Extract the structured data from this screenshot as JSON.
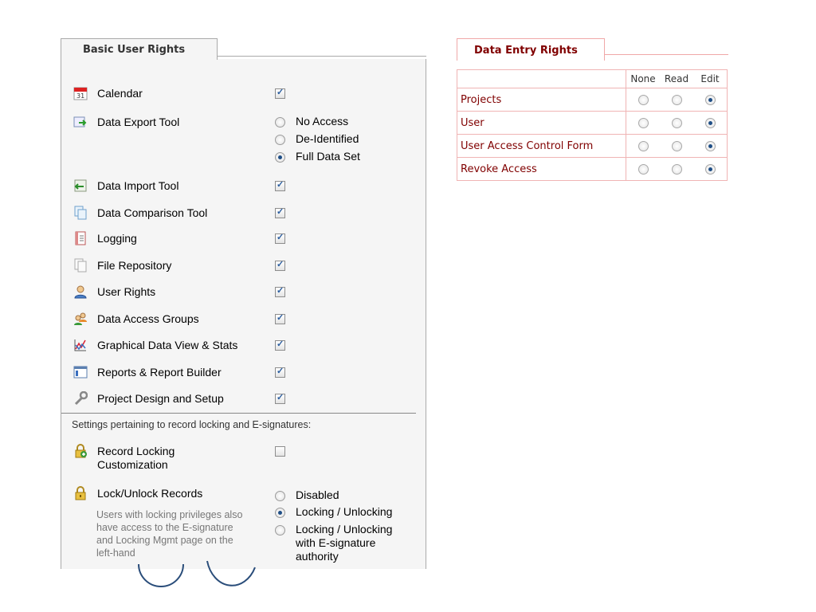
{
  "basic": {
    "tab": "Basic User Rights",
    "items": [
      {
        "label": "Calendar",
        "icon": "calendar-icon"
      },
      {
        "label": "Data Export Tool",
        "icon": "export-icon"
      },
      {
        "label": "Data Import Tool",
        "icon": "import-icon"
      },
      {
        "label": "Data Comparison Tool",
        "icon": "compare-icon"
      },
      {
        "label": "Logging",
        "icon": "logging-icon"
      },
      {
        "label": "File Repository",
        "icon": "file-repository-icon"
      },
      {
        "label": "User Rights",
        "icon": "user-icon"
      },
      {
        "label": "Data Access Groups",
        "icon": "users-group-icon"
      },
      {
        "label": "Graphical Data View & Stats",
        "icon": "chart-icon"
      },
      {
        "label": "Reports & Report Builder",
        "icon": "report-icon"
      },
      {
        "label": "Project Design and Setup",
        "icon": "wrench-icon"
      }
    ],
    "export_options": [
      "No Access",
      "De-Identified",
      "Full Data Set"
    ],
    "export_selected": "Full Data Set",
    "settings_note": "Settings pertaining to record locking and E-signatures:",
    "record_locking": {
      "label": "Record Locking Customization",
      "icon": "lock-add-icon",
      "checked": false
    },
    "lock_unlock": {
      "label": "Lock/Unlock Records",
      "icon": "lock-icon",
      "description": "Users with locking privileges also have access to the E-signature and Locking Mgmt page on the left-hand",
      "options": [
        "Disabled",
        "Locking / Unlocking",
        "Locking / Unlocking with E-signature authority"
      ],
      "selected": "Locking / Unlocking"
    }
  },
  "entry": {
    "tab": "Data Entry Rights",
    "headers": [
      "None",
      "Read",
      "Edit"
    ],
    "rows": [
      {
        "name": "Projects",
        "selected": "Edit"
      },
      {
        "name": "User",
        "selected": "Edit"
      },
      {
        "name": "User Access Control Form",
        "selected": "Edit"
      },
      {
        "name": "Revoke Access",
        "selected": "Edit"
      }
    ]
  },
  "colors": {
    "tab_text_right": "#800000",
    "panel_bg": "#f5f5f5",
    "radio_selected": "#1f4e86",
    "check_mark": "#2a5d9f"
  }
}
